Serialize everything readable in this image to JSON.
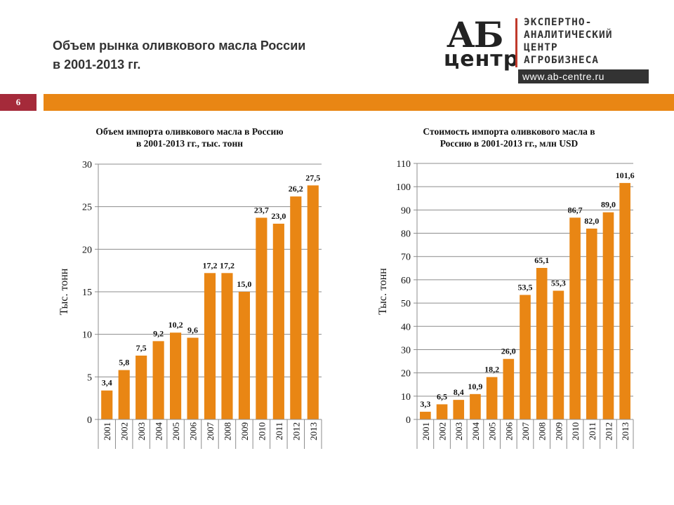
{
  "header": {
    "title_line1": "Объем рынка оливкового масла России",
    "title_line2": "в 2001-2013 гг."
  },
  "logo": {
    "mark_top": "АБ",
    "mark_bottom": "центр",
    "line1": "ЭКСПЕРТНО-",
    "line2": "АНАЛИТИЧЕСКИЙ",
    "line3": "ЦЕНТР",
    "line4": "АГРОБИЗНЕСА",
    "url": "www.ab-centre.ru"
  },
  "slide": {
    "page_number": "6"
  },
  "colors": {
    "bar": "#e98614",
    "accent_bar": "#e98614",
    "page_badge": "#a52a3a"
  },
  "chart_data": [
    {
      "type": "bar",
      "title_line1": "Объем импорта оливкового масла в Россию",
      "title_line2": "в 2001-2013 гг., тыс. тонн",
      "ylabel": "Тыс. тонн",
      "xlabel": "",
      "ylim": [
        0,
        30
      ],
      "yticks": [
        0,
        5,
        10,
        15,
        20,
        25,
        30
      ],
      "categories": [
        "2001",
        "2002",
        "2003",
        "2004",
        "2005",
        "2006",
        "2007",
        "2008",
        "2009",
        "2010",
        "2011",
        "2012",
        "2013"
      ],
      "values": [
        3.4,
        5.8,
        7.5,
        9.2,
        10.2,
        9.6,
        17.2,
        17.2,
        15.0,
        23.7,
        23.0,
        26.2,
        27.5
      ],
      "labels": [
        "3,4",
        "5,8",
        "7,5",
        "9,2",
        "10,2",
        "9,6",
        "17,2",
        "17,2",
        "15,0",
        "23,7",
        "23,0",
        "26,2",
        "27,5"
      ],
      "grid": true
    },
    {
      "type": "bar",
      "title_line1": "Стоимость импорта оливкового масла в",
      "title_line2": "Россию в 2001-2013 гг., млн USD",
      "ylabel": "Тыс. тонн",
      "xlabel": "",
      "ylim": [
        0,
        110
      ],
      "yticks": [
        0,
        10,
        20,
        30,
        40,
        50,
        60,
        70,
        80,
        90,
        100,
        110
      ],
      "categories": [
        "2001",
        "2002",
        "2003",
        "2004",
        "2005",
        "2006",
        "2007",
        "2008",
        "2009",
        "2010",
        "2011",
        "2012",
        "2013"
      ],
      "values": [
        3.3,
        6.5,
        8.4,
        10.9,
        18.2,
        26.0,
        53.5,
        65.1,
        55.3,
        86.7,
        82.0,
        89.0,
        101.6
      ],
      "labels": [
        "3,3",
        "6,5",
        "8,4",
        "10,9",
        "18,2",
        "26,0",
        "53,5",
        "65,1",
        "55,3",
        "86,7",
        "82,0",
        "89,0",
        "101,6"
      ],
      "grid": true
    }
  ]
}
